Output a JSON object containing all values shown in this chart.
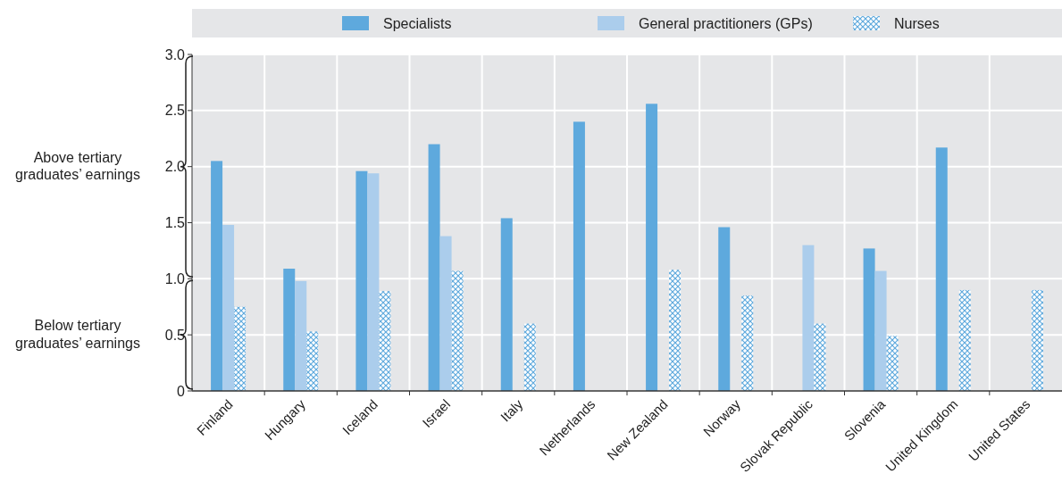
{
  "chart_data": {
    "type": "bar",
    "categories": [
      "Finland",
      "Hungary",
      "Iceland",
      "Israel",
      "Italy",
      "Netherlands",
      "New Zealand",
      "Norway",
      "Slovak Republic",
      "Slovenia",
      "United Kingdom",
      "United States"
    ],
    "series": [
      {
        "name": "Specialists",
        "color": "#5ea9dd",
        "values": [
          2.05,
          1.09,
          1.96,
          2.2,
          1.54,
          2.4,
          2.56,
          1.46,
          null,
          1.27,
          2.17,
          null
        ]
      },
      {
        "name": "General practitioners (GPs)",
        "color": "#abcdec",
        "values": [
          1.48,
          0.98,
          1.94,
          1.38,
          null,
          null,
          null,
          null,
          1.3,
          1.07,
          null,
          null
        ]
      },
      {
        "name": "Nurses",
        "color": "#5ea9dd",
        "values": [
          0.75,
          0.53,
          0.89,
          1.07,
          0.6,
          null,
          1.08,
          0.85,
          0.6,
          0.49,
          0.9,
          0.9
        ]
      }
    ],
    "ylim": [
      0,
      3
    ],
    "yticks": [
      0,
      0.5,
      {
        "value": 1,
        "label": "1.0"
      },
      1.5,
      {
        "value": 2,
        "label": "2.0"
      },
      2.5,
      {
        "value": 3,
        "label": "3.0"
      }
    ],
    "grid": true,
    "legend": "top",
    "annotations": [
      "Above tertiary graduates’ earnings",
      "Below tertiary graduates’ earnings"
    ]
  }
}
